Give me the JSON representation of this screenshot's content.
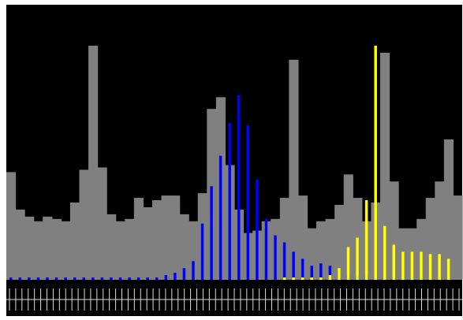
{
  "chart_data": {
    "type": "bar",
    "title": "",
    "xlabel": "",
    "ylabel": "",
    "grid": false,
    "legend": "none",
    "colors": {
      "background": "#000000",
      "gray": "#808080",
      "white": "#ffffff",
      "blue": "#0000ff",
      "yellow": "#ffff00",
      "scale": "#d9d9d9"
    },
    "x_count": 50,
    "ylim": [
      0,
      100
    ],
    "series": [
      {
        "color": "#808080",
        "style": "step",
        "values": [
          46,
          30,
          27,
          25,
          27,
          26,
          25,
          33,
          47,
          100,
          48,
          28,
          25,
          26,
          35,
          31,
          34,
          36,
          36,
          28,
          25,
          37,
          73,
          78,
          49,
          30,
          20,
          21,
          25,
          26,
          35,
          94,
          36,
          22,
          25,
          26,
          32,
          45,
          35,
          25,
          33,
          97,
          42,
          22,
          22,
          26,
          35,
          42,
          60,
          36
        ]
      },
      {
        "color": "#ffffff",
        "style": "step",
        "values": [
          0,
          0,
          0,
          0,
          0,
          0,
          0,
          0,
          0,
          0,
          0,
          0,
          0,
          0,
          0,
          0,
          0,
          0,
          0,
          0,
          0,
          0,
          0,
          0,
          0,
          0,
          0,
          0,
          0,
          0,
          0,
          0,
          0,
          0,
          0,
          0,
          0,
          0,
          0,
          0,
          0,
          0,
          0,
          0,
          0,
          0,
          0,
          0,
          0,
          0
        ]
      },
      {
        "color": "#0000ff",
        "style": "bar",
        "values": [
          1,
          1,
          1,
          1,
          1,
          1,
          1,
          1,
          1,
          1,
          1,
          1,
          1,
          1,
          1,
          1,
          1,
          2,
          3,
          5,
          8,
          24,
          40,
          53,
          67,
          79,
          66,
          43,
          26,
          19,
          16,
          12,
          9,
          6,
          7,
          6,
          4,
          2,
          2,
          2,
          1,
          1,
          1,
          0,
          0,
          0,
          0,
          0,
          0,
          0
        ]
      },
      {
        "color": "#ffff00",
        "style": "bar",
        "values": [
          0,
          0,
          0,
          0,
          0,
          0,
          0,
          0,
          0,
          0,
          0,
          0,
          0,
          0,
          0,
          0,
          0,
          0,
          0,
          0,
          0,
          0,
          0,
          0,
          0,
          0,
          0,
          0,
          0,
          0,
          1,
          1,
          1,
          1,
          1,
          2,
          5,
          14,
          18,
          34,
          100,
          23,
          15,
          12,
          12,
          12,
          11,
          11,
          9,
          0
        ]
      }
    ]
  }
}
